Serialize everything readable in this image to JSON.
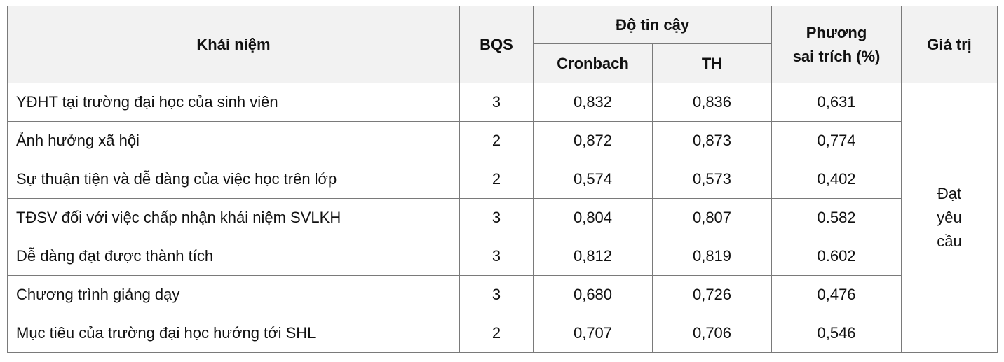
{
  "table": {
    "header": {
      "concept": "Khái niệm",
      "bqs": "BQS",
      "reliability": "Độ tin cậy",
      "cronbach": "Cronbach",
      "th": "TH",
      "variance": [
        "Phương",
        "sai trích (%)"
      ],
      "value": "Giá trị"
    },
    "rows": [
      [
        "YĐHT tại trường đại học của sinh viên",
        "3",
        "0,832",
        "0,836",
        "0,631"
      ],
      [
        "Ảnh hưởng xã hội",
        "2",
        "0,872",
        "0,873",
        "0,774"
      ],
      [
        "Sự thuận tiện và dễ dàng của việc học trên lớp",
        "2",
        "0,574",
        "0,573",
        "0,402"
      ],
      [
        "TĐSV đối với việc chấp nhận khái niệm SVLKH",
        "3",
        "0,804",
        "0,807",
        "0.582"
      ],
      [
        "Dễ dàng đạt được thành tích",
        "3",
        "0,812",
        "0,819",
        "0.602"
      ],
      [
        "Chương trình giảng dạy",
        "3",
        "0,680",
        "0,726",
        "0,476"
      ],
      [
        "Mục tiêu của trường đại học hướng tới SHL",
        "2",
        "0,707",
        "0,706",
        "0,546"
      ]
    ],
    "verdict": [
      "Đạt",
      "yêu",
      "cầu"
    ]
  }
}
